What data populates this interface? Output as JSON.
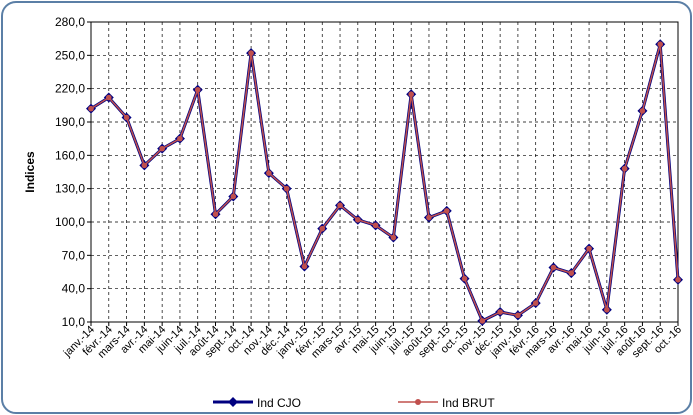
{
  "chart_data": {
    "type": "line",
    "y_label": "Indices",
    "categories": [
      "janv.-14",
      "févr.-14",
      "mars-14",
      "avr.-14",
      "mai-14",
      "juin-14",
      "juil.-14",
      "août-14",
      "sept.-14",
      "oct.-14",
      "nov.-14",
      "déc.-14",
      "janv.-15",
      "févr.-15",
      "mars-15",
      "avr.-15",
      "mai-15",
      "juin-15",
      "juil.-15",
      "août-15",
      "sept.-15",
      "oct.-15",
      "nov.-15",
      "déc.-15",
      "janv.-16",
      "févr.-16",
      "mars-16",
      "avr.-16",
      "mai-16",
      "juin-16",
      "juil.-16",
      "août-16",
      "sept.-16",
      "oct.-16"
    ],
    "series": [
      {
        "name": "Ind CJO",
        "color": "#000080",
        "marker": "diamond",
        "values": [
          202,
          212,
          194,
          151,
          166,
          175,
          219,
          107,
          123,
          252,
          144,
          130,
          60,
          94,
          115,
          102,
          97,
          86,
          215,
          104,
          110,
          49,
          11,
          19,
          16,
          27,
          59,
          54,
          76,
          21,
          148,
          200,
          260,
          48
        ]
      },
      {
        "name": "Ind BRUT",
        "color": "#c0504d",
        "marker": "circle",
        "values": [
          202,
          212,
          194,
          151,
          166,
          175,
          219,
          107,
          123,
          252,
          144,
          130,
          60,
          94,
          115,
          102,
          97,
          86,
          215,
          104,
          110,
          49,
          11,
          19,
          16,
          27,
          59,
          54,
          76,
          21,
          148,
          200,
          260,
          48
        ]
      }
    ],
    "ylim": [
      10,
      280
    ],
    "yticks": [
      {
        "value": 10,
        "label": "10,0"
      },
      {
        "value": 40,
        "label": "40,0"
      },
      {
        "value": 70,
        "label": "70,0"
      },
      {
        "value": 100,
        "label": "100,0"
      },
      {
        "value": 130,
        "label": "130,0"
      },
      {
        "value": 160,
        "label": "160,0"
      },
      {
        "value": 190,
        "label": "190,0"
      },
      {
        "value": 220,
        "label": "220,0"
      },
      {
        "value": 250,
        "label": "250,0"
      },
      {
        "value": 280,
        "label": "280,0"
      }
    ],
    "grid": true,
    "legend": "bottom"
  }
}
